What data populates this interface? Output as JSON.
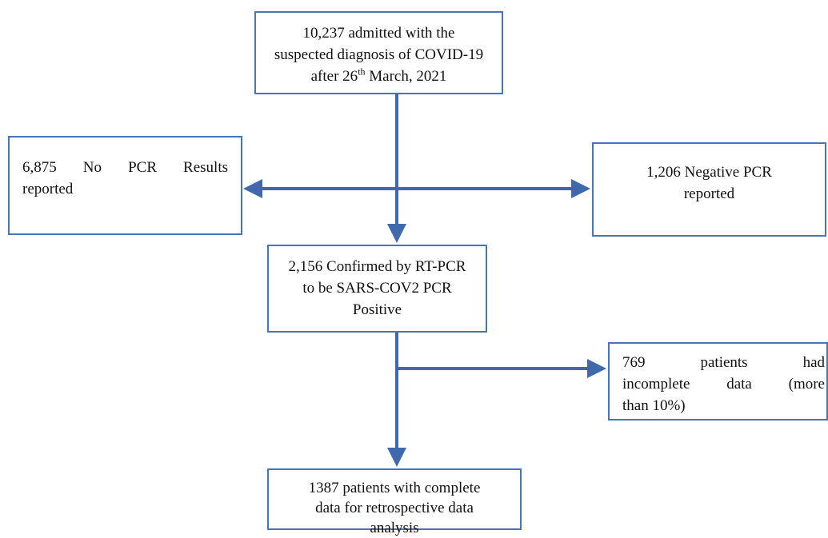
{
  "nodes": [
    {
      "lines": [
        "10,237 admitted with the",
        "suspected diagnosis of COVID-19"
      ],
      "date": {
        "prefix": "after 26",
        "superscript": "th",
        "suffix": " March, 2021"
      }
    },
    {
      "lines": [
        "6,875 No PCR Results",
        "reported"
      ]
    },
    {
      "lines": [
        "1,206 Negative PCR",
        "reported"
      ]
    },
    {
      "lines": [
        "2,156 Confirmed by RT-PCR",
        "to be SARS-COV2 PCR",
        "Positive"
      ]
    },
    {
      "lines": [
        "769 patients had",
        "incomplete data (more",
        "than 10%)"
      ]
    },
    {
      "lines": [
        "1387 patients with complete",
        "data for retrospective data",
        "analysis"
      ]
    }
  ]
}
